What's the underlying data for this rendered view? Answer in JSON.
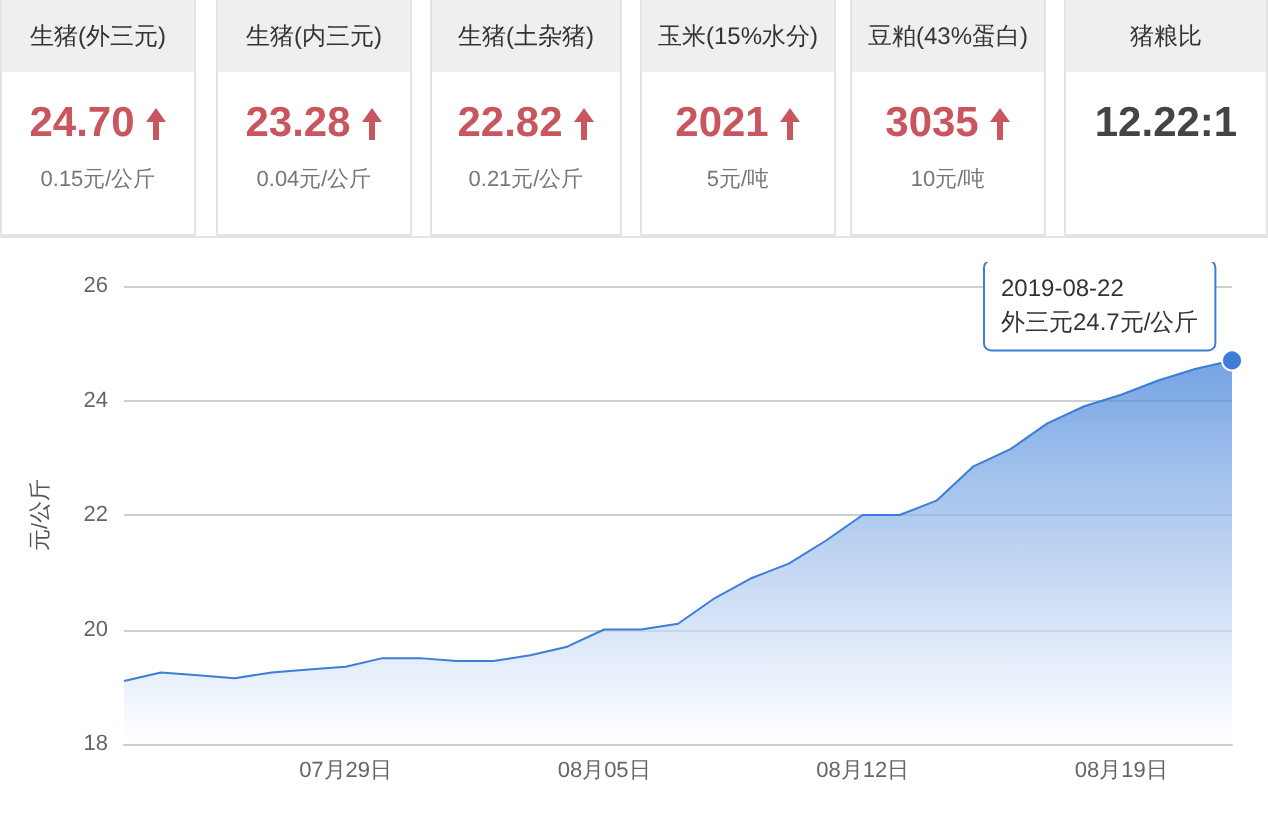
{
  "chart_data": [
    {
      "type": "other",
      "categories": [
        "生猪(外三元)",
        "生猪(内三元)",
        "生猪(土杂猪)",
        "玉米(15%水分)",
        "豆粕(43%蛋白)",
        "猪粮比"
      ],
      "value_labels": [
        "24.70",
        "23.28",
        "22.82",
        "2021",
        "3035",
        "12.22:1"
      ],
      "annotations": [
        "0.15元/公斤",
        "0.04元/公斤",
        "0.21元/公斤",
        "5元/吨",
        "10元/吨",
        null
      ]
    },
    {
      "type": "area",
      "ylabel": "元/公斤",
      "x": [
        "2019-07-23",
        "2019-07-24",
        "2019-07-25",
        "2019-07-26",
        "2019-07-27",
        "2019-07-28",
        "2019-07-29",
        "2019-07-30",
        "2019-07-31",
        "2019-08-01",
        "2019-08-02",
        "2019-08-03",
        "2019-08-04",
        "2019-08-05",
        "2019-08-06",
        "2019-08-07",
        "2019-08-08",
        "2019-08-09",
        "2019-08-10",
        "2019-08-11",
        "2019-08-12",
        "2019-08-13",
        "2019-08-14",
        "2019-08-15",
        "2019-08-16",
        "2019-08-17",
        "2019-08-18",
        "2019-08-19",
        "2019-08-20",
        "2019-08-21",
        "2019-08-22"
      ],
      "series": [
        {
          "color": "#3b7dd8",
          "values": [
            19.1,
            19.25,
            19.2,
            19.15,
            19.25,
            19.3,
            19.35,
            19.5,
            19.5,
            19.45,
            19.45,
            19.55,
            19.7,
            20.0,
            20.0,
            20.1,
            20.55,
            20.9,
            21.15,
            21.55,
            22.0,
            22.0,
            22.25,
            22.85,
            23.15,
            23.6,
            23.9,
            24.1,
            24.35,
            24.55,
            24.7
          ]
        }
      ],
      "xlim": [
        "2019-07-23",
        "2019-08-22"
      ],
      "xticks": [
        {
          "value": "2019-07-29",
          "label": "07月29日"
        },
        {
          "value": "2019-08-05",
          "label": "08月05日"
        },
        {
          "value": "2019-08-12",
          "label": "08月12日"
        },
        {
          "value": "2019-08-19",
          "label": "08月19日"
        }
      ],
      "ylim": [
        18,
        26
      ],
      "yticks": [
        18,
        20,
        22,
        24,
        26
      ],
      "grid": "y",
      "marker": "none",
      "line_style": "solid",
      "annotations": [
        {
          "text": "2019-08-22\n外三元24.7元/公斤",
          "x": "2019-08-22",
          "y": 24.7
        }
      ]
    }
  ]
}
